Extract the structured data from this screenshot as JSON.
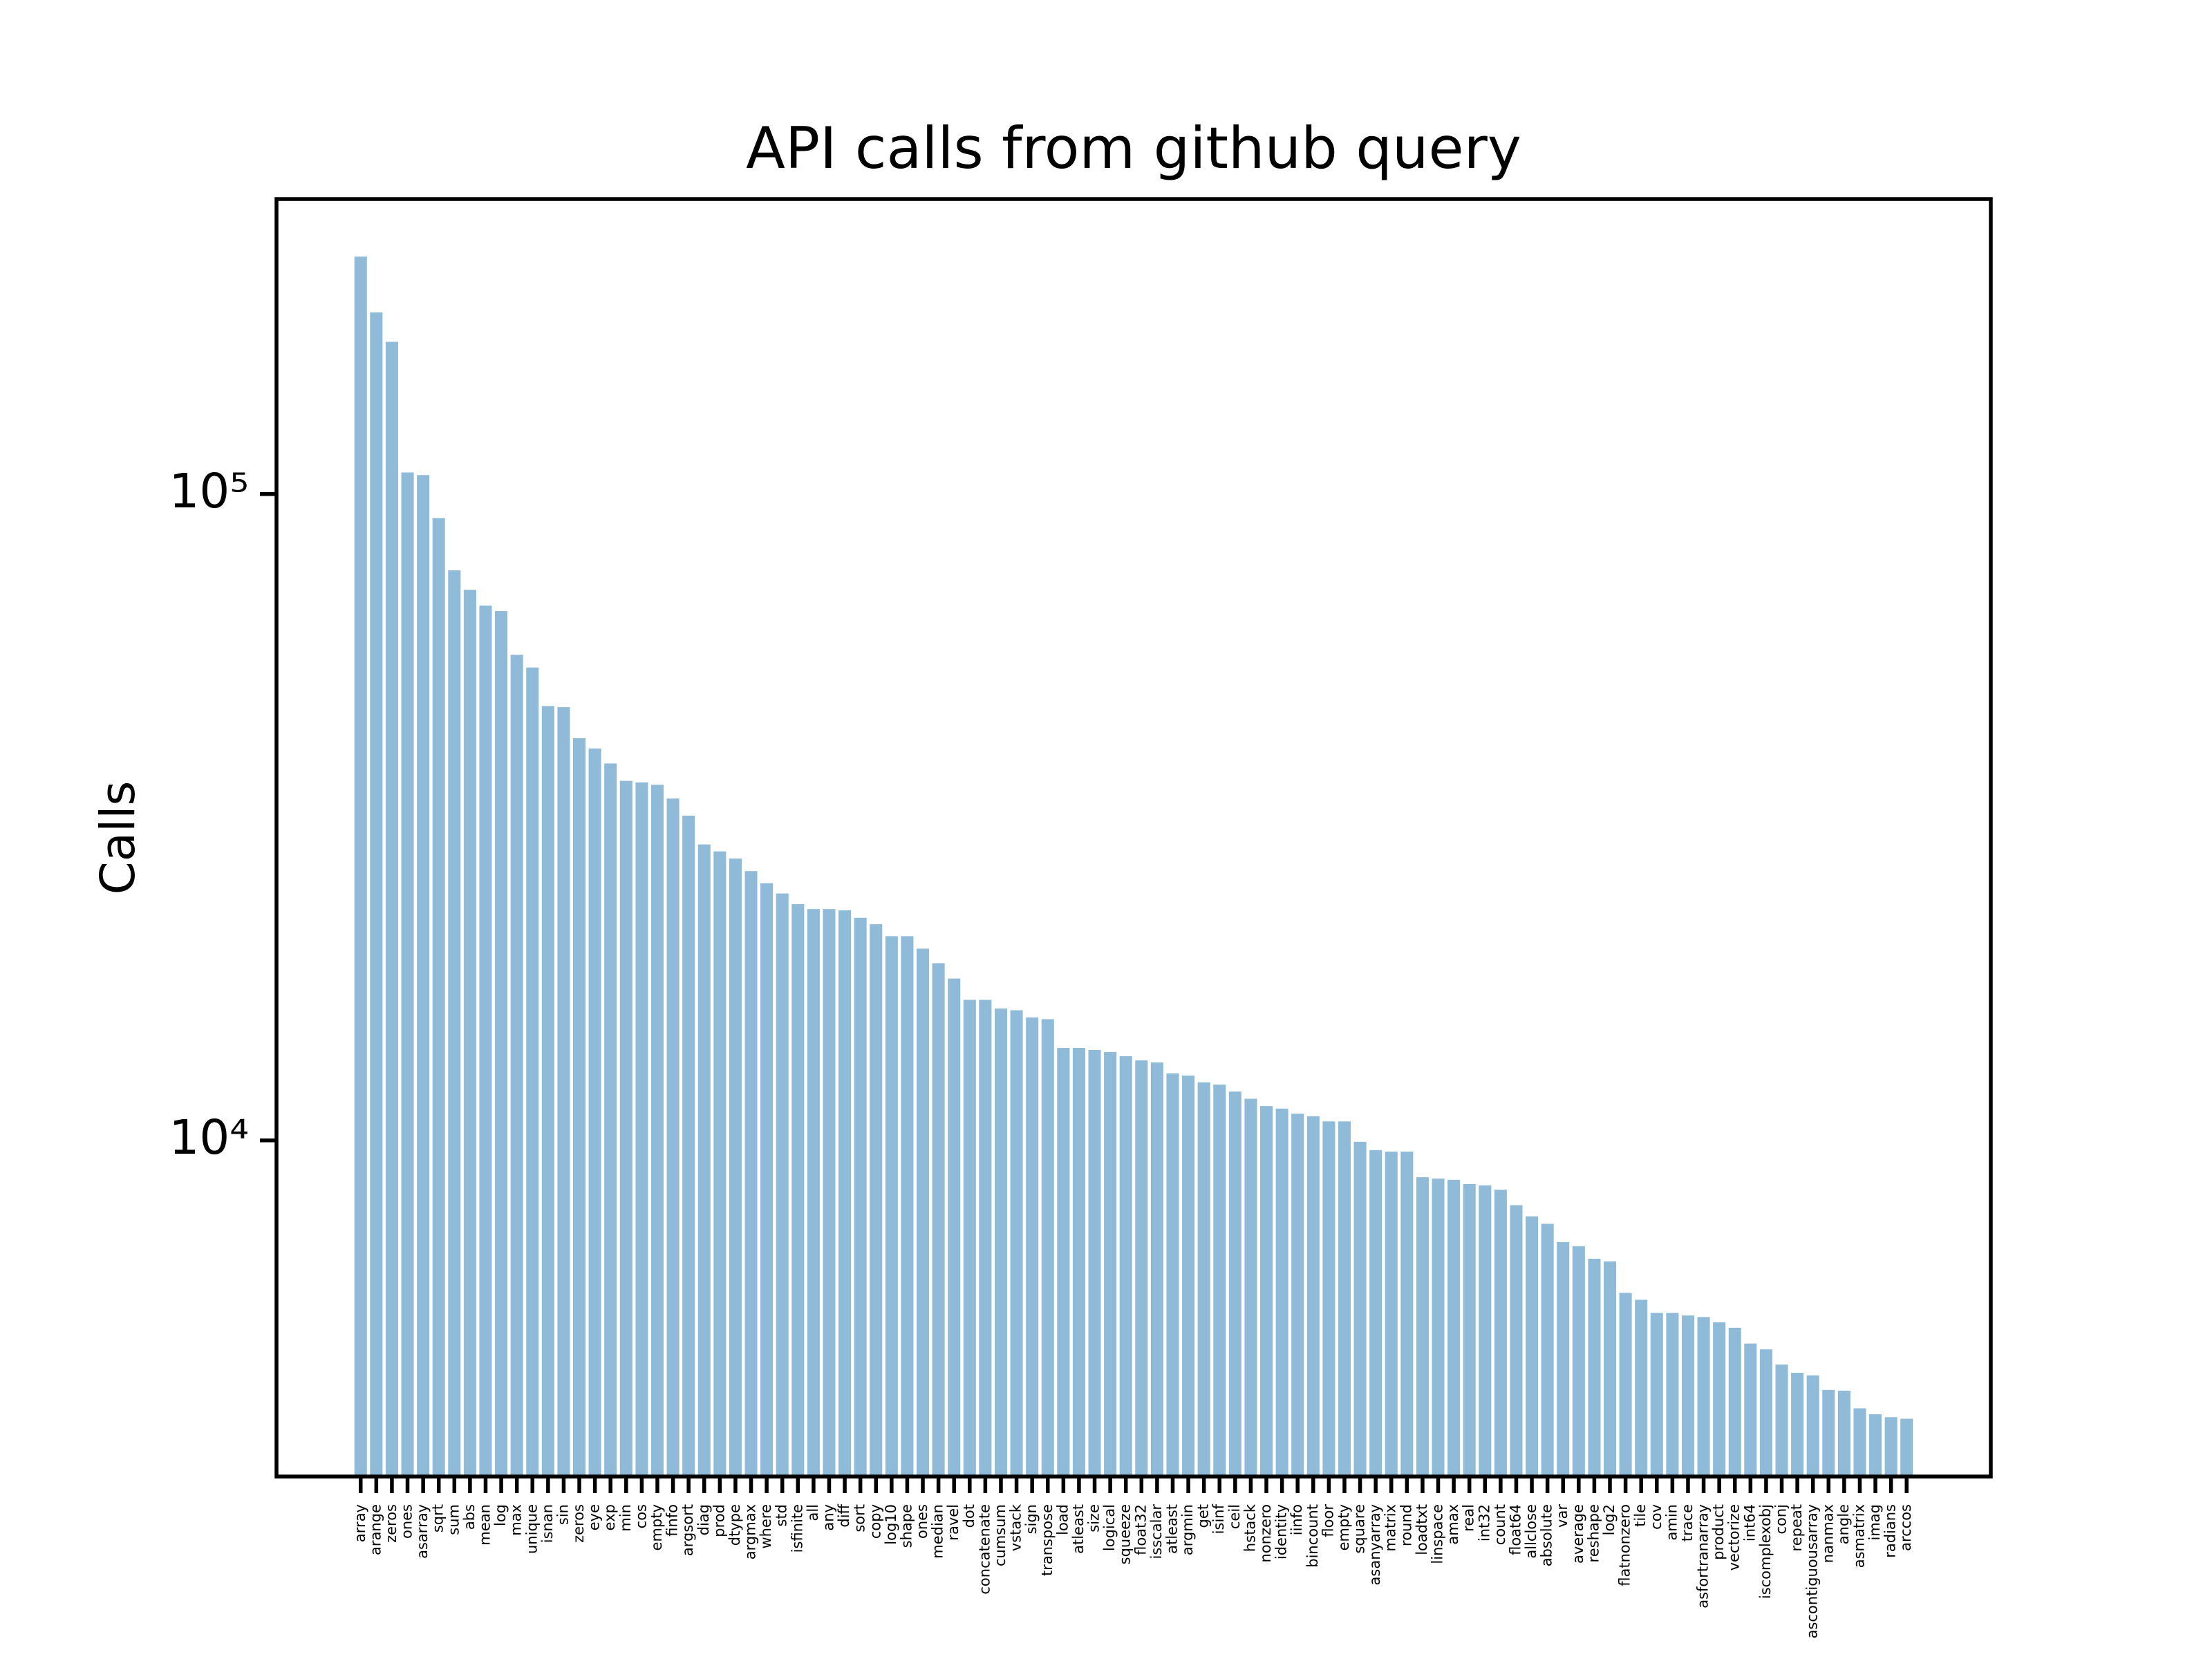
{
  "chart_data": {
    "type": "bar",
    "title": "API calls from github query",
    "ylabel": "Calls",
    "categories": [
      "array",
      "arange",
      "zeros",
      "ones",
      "asarray",
      "sqrt",
      "sum",
      "abs",
      "mean",
      "log",
      "max",
      "unique",
      "isnan",
      "sin",
      "zeros",
      "eye",
      "exp",
      "min",
      "cos",
      "empty",
      "finfo",
      "argsort",
      "diag",
      "prod",
      "dtype",
      "argmax",
      "where",
      "std",
      "isfinite",
      "all",
      "any",
      "diff",
      "sort",
      "copy",
      "log10",
      "shape",
      "ones",
      "median",
      "ravel",
      "dot",
      "concatenate",
      "cumsum",
      "vstack",
      "sign",
      "transpose",
      "load",
      "atleast",
      "size",
      "logical",
      "squeeze",
      "float32",
      "isscalar",
      "atleast",
      "argmin",
      "get",
      "isinf",
      "ceil",
      "hstack",
      "nonzero",
      "identity",
      "iinfo",
      "bincount",
      "floor",
      "empty",
      "square",
      "asanyarray",
      "matrix",
      "round",
      "loadtxt",
      "linspace",
      "amax",
      "real",
      "int32",
      "count",
      "float64",
      "allclose",
      "absolute",
      "var",
      "average",
      "reshape",
      "log2",
      "flatnonzero",
      "tile",
      "cov",
      "amin",
      "trace",
      "asfortranarray",
      "product",
      "vectorize",
      "int64",
      "iscomplexobj",
      "conj",
      "repeat",
      "ascontiguousarray",
      "nanmax",
      "angle",
      "asmatrix",
      "imag",
      "radians",
      "arccos"
    ],
    "values": [
      233000,
      191000,
      172000,
      108000,
      107000,
      91800,
      76200,
      71100,
      67200,
      65900,
      56400,
      53900,
      47000,
      46800,
      41900,
      40400,
      38300,
      36000,
      35800,
      35500,
      33800,
      31800,
      28700,
      28000,
      27300,
      26100,
      25000,
      24100,
      23200,
      22800,
      22800,
      22700,
      22100,
      21600,
      20700,
      20700,
      19800,
      18800,
      17800,
      16500,
      16500,
      16000,
      15900,
      15500,
      15400,
      13900,
      13900,
      13800,
      13700,
      13500,
      13300,
      13200,
      12700,
      12600,
      12300,
      12200,
      11900,
      11600,
      11300,
      11200,
      11000,
      10900,
      10700,
      10700,
      9950,
      9660,
      9610,
      9610,
      8770,
      8730,
      8690,
      8560,
      8520,
      8390,
      7940,
      7630,
      7430,
      6960,
      6860,
      6560,
      6500,
      5810,
      5670,
      5410,
      5410,
      5360,
      5330,
      5230,
      5130,
      4850,
      4750,
      4500,
      4370,
      4330,
      4110,
      4100,
      3850,
      3770,
      3730,
      3710
    ],
    "color": "#8fbbd9",
    "log_scale": true,
    "ylim": [
      3020,
      286000
    ],
    "yticks": [
      {
        "value": 10000,
        "label": "10⁴"
      },
      {
        "value": 100000,
        "label": "10⁵"
      }
    ]
  }
}
